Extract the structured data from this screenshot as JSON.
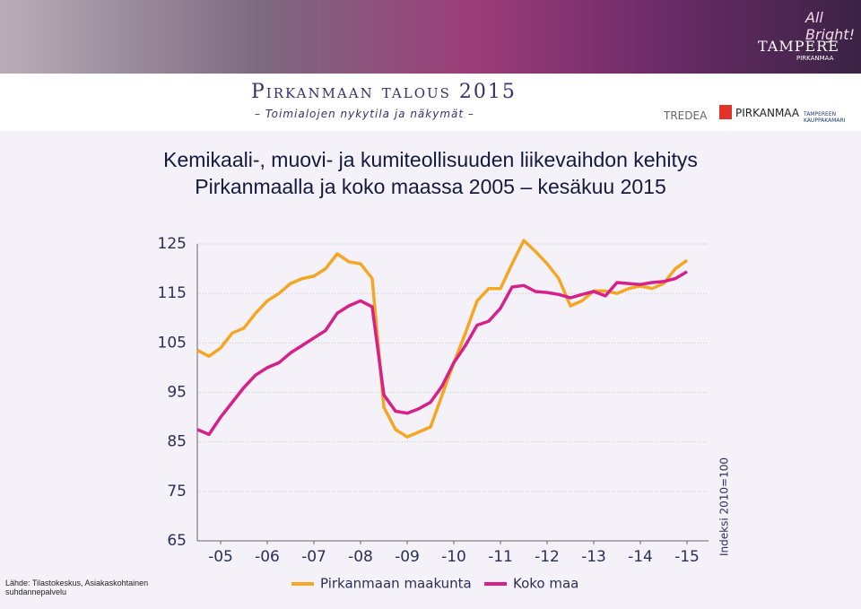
{
  "header": {
    "title": "Pirkanmaan talous 2015",
    "subtitle": "– Toimialojen nykytila ja näkymät –",
    "logos": [
      "All Bright!",
      "TAMPERE",
      "PIRKANMAA",
      "TREDEA",
      "PIRKANMAA",
      "TAMPEREEN KAUPPAKAMARI"
    ]
  },
  "source": "Lähde: Tilastokeskus, Asiakaskohtainen suhdannepalvelu",
  "chart_data": {
    "type": "line",
    "title": "Kemikaali-, muovi- ja kumiteollisuuden liikevaihdon kehitys Pirkanmaalla ja koko maassa 2005 – kesäkuu 2015",
    "ylabel": "Indeksi 2010=100",
    "x": [
      2005,
      2005.25,
      2005.5,
      2005.75,
      2006,
      2006.25,
      2006.5,
      2006.75,
      2007,
      2007.25,
      2007.5,
      2007.75,
      2008,
      2008.25,
      2008.5,
      2008.75,
      2009,
      2009.25,
      2009.5,
      2009.75,
      2010,
      2010.25,
      2010.5,
      2010.75,
      2011,
      2011.25,
      2011.5,
      2011.75,
      2012,
      2012.25,
      2012.5,
      2012.75,
      2013,
      2013.25,
      2013.5,
      2013.75,
      2014,
      2014.25,
      2014.5,
      2014.75,
      2015,
      2015.25,
      2015.5
    ],
    "series": [
      {
        "name": "Pirkanmaan maakunta",
        "color": "#f5a623",
        "values": [
          103.5,
          102.3,
          104,
          107,
          108,
          111,
          113.5,
          115,
          117,
          118,
          118.5,
          120,
          123,
          121.4,
          121,
          118,
          92,
          87.5,
          86,
          87,
          88,
          94.5,
          101,
          107,
          113.5,
          116,
          116,
          121,
          125.7,
          123.5,
          121,
          118,
          112.5,
          113.5,
          115.5,
          115.5,
          115,
          116,
          116.5,
          116,
          117,
          120,
          121.7
        ]
      },
      {
        "name": "Koko maa",
        "color": "#d6218a",
        "values": [
          87.5,
          86.5,
          90,
          93,
          96,
          98.5,
          100,
          101,
          103,
          104.5,
          106,
          107.5,
          111,
          112.5,
          113.5,
          112.3,
          94.5,
          91.2,
          90.8,
          91.7,
          93,
          96.3,
          101,
          104.5,
          108.6,
          109.4,
          112,
          116.3,
          116.6,
          115.4,
          115.2,
          114.8,
          114.1,
          114.8,
          115.4,
          114.5,
          117.2,
          117,
          116.8,
          117.2,
          117.4,
          118,
          119.4
        ]
      }
    ],
    "xlim": [
      2005,
      2015.5
    ],
    "xticks": [
      {
        "value": 2005.5,
        "label": "-05"
      },
      {
        "value": 2006.5,
        "label": "-06"
      },
      {
        "value": 2007.5,
        "label": "-07"
      },
      {
        "value": 2008.5,
        "label": "-08"
      },
      {
        "value": 2009.5,
        "label": "-09"
      },
      {
        "value": 2010.5,
        "label": "-10"
      },
      {
        "value": 2011.5,
        "label": "-11"
      },
      {
        "value": 2012.5,
        "label": "-12"
      },
      {
        "value": 2013.5,
        "label": "-13"
      },
      {
        "value": 2014.5,
        "label": "-14"
      },
      {
        "value": 2015.5,
        "label": "-15"
      }
    ],
    "ylim": [
      65,
      125
    ],
    "yticks": [
      125,
      115,
      105,
      95,
      85,
      75,
      65
    ],
    "grid": true
  }
}
